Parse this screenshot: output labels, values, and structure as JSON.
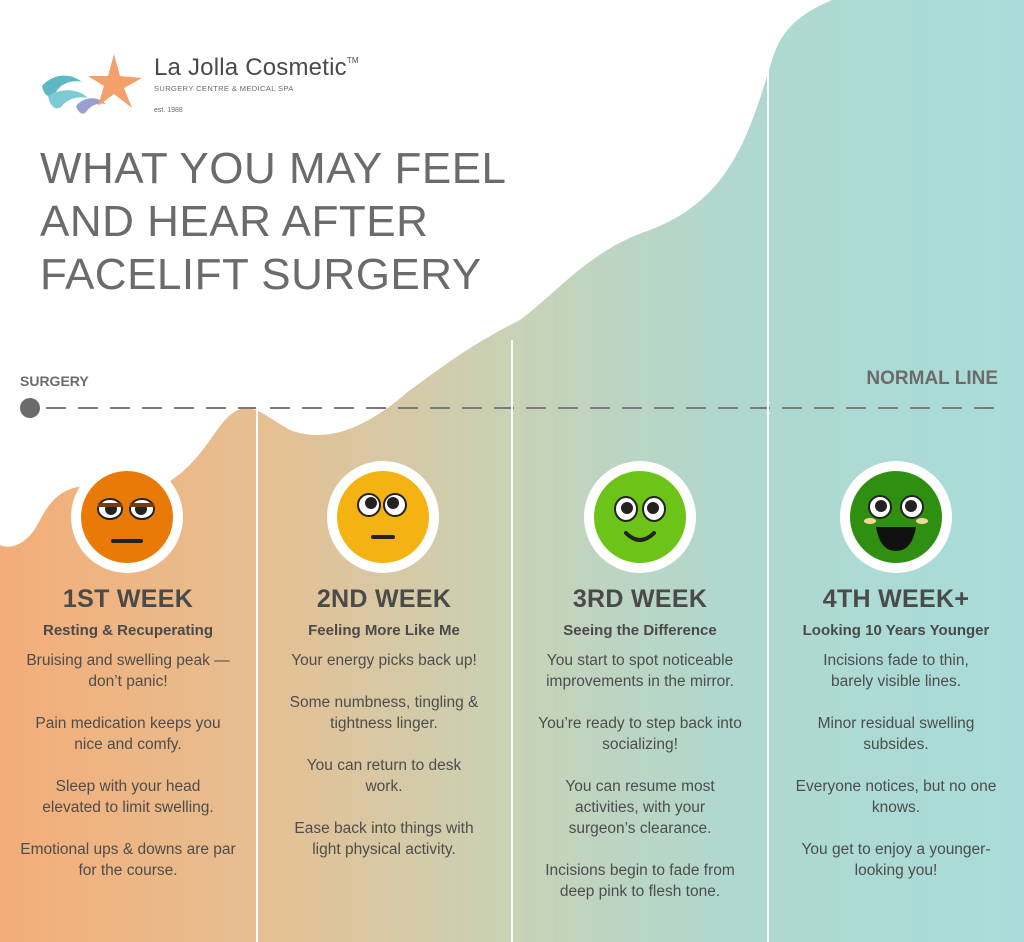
{
  "logo": {
    "name": "La Jolla Cosmetic",
    "tm": "TM",
    "tagline": "SURGERY CENTRE & MEDICAL SPA",
    "est": "est. 1988"
  },
  "title": {
    "lines": [
      "WHAT YOU MAY FEEL",
      "AND HEAR AFTER",
      "FACELIFT SURGERY"
    ]
  },
  "timeline": {
    "start_label": "SURGERY",
    "normal_label": "NORMAL LINE"
  },
  "colors": {
    "orange": "#f2ae7a",
    "teal": "#a9dcd9",
    "text": "#4d4d4d",
    "face_week1": "#ea7a08",
    "face_week2": "#f4b312",
    "face_week3": "#6cc418",
    "face_week4": "#2e8f10"
  },
  "weeks": [
    {
      "heading": "1ST WEEK",
      "subheading": "Resting & Recuperating",
      "face_icon": "grimace-face-icon",
      "items": [
        "Bruising and swelling peak —don’t panic!",
        "Pain medication keeps you nice and comfy.",
        "Sleep with your head elevated to limit swelling.",
        "Emotional ups & downs are par for the course."
      ]
    },
    {
      "heading": "2ND WEEK",
      "subheading": "Feeling More Like Me",
      "face_icon": "neutral-face-icon",
      "items": [
        "Your energy picks back up!",
        "Some numbness, tingling & tightness linger.",
        "You can return to desk work.",
        "Ease back into things with light physical activity."
      ]
    },
    {
      "heading": "3RD WEEK",
      "subheading": "Seeing the Difference",
      "face_icon": "smile-face-icon",
      "items": [
        "You start to spot noticeable improvements in the mirror.",
        "You’re ready to step back into socializing!",
        "You can resume most activities, with your surgeon’s clearance.",
        "Incisions begin to fade from deep pink to flesh tone."
      ]
    },
    {
      "heading": "4TH WEEK+",
      "subheading": "Looking 10 Years Younger",
      "face_icon": "grin-face-icon",
      "items": [
        "Incisions fade to thin, barely visible lines.",
        "Minor residual swelling subsides.",
        "Everyone notices, but no one knows.",
        "You get to enjoy a younger-looking you!"
      ]
    }
  ]
}
